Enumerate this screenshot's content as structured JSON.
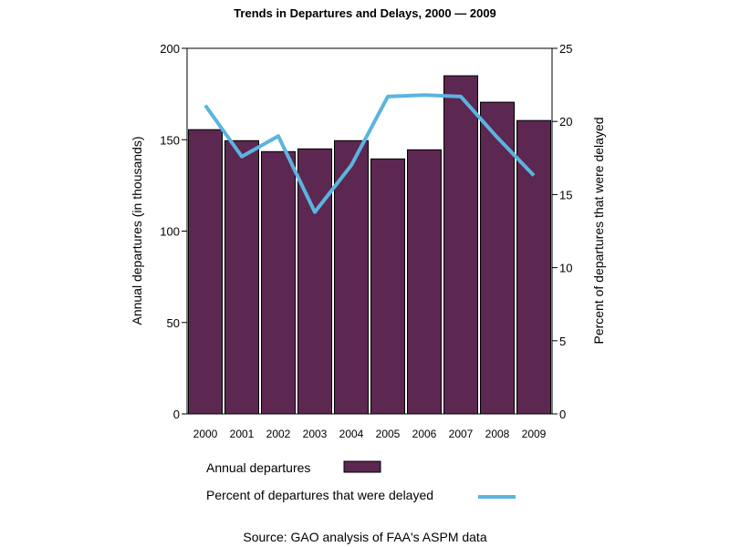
{
  "chart_data": {
    "type": "bar",
    "title": "Trends in Departures and Delays, 2000 — 2009",
    "categories": [
      "2000",
      "2001",
      "2002",
      "2003",
      "2004",
      "2005",
      "2006",
      "2007",
      "2008",
      "2009"
    ],
    "series": [
      {
        "name": "Annual departures",
        "type": "bar",
        "axis": "left",
        "color": "#5c2750",
        "values": [
          155.5,
          149.5,
          143.5,
          145,
          149.5,
          139.5,
          144.5,
          185,
          170.5,
          160.5
        ]
      },
      {
        "name": "Percent of departures that were delayed",
        "type": "line",
        "axis": "right",
        "color": "#5bb4e0",
        "values": [
          21.1,
          17.6,
          19.0,
          13.8,
          17.0,
          21.7,
          21.8,
          21.7,
          18.9,
          16.3
        ]
      }
    ],
    "ylabel": "Annual departures (in thousands)",
    "ylim": [
      0,
      200
    ],
    "yticks": [
      "0",
      "50",
      "100",
      "150",
      "200"
    ],
    "y2label": "Percent of departures that were delayed",
    "y2lim": [
      0,
      25
    ],
    "y2ticks": [
      "0",
      "5",
      "10",
      "15",
      "20",
      "25"
    ],
    "xlabel": "",
    "grid": false,
    "legend_position": "bottom",
    "source": "Source: GAO analysis of FAA's ASPM data"
  }
}
